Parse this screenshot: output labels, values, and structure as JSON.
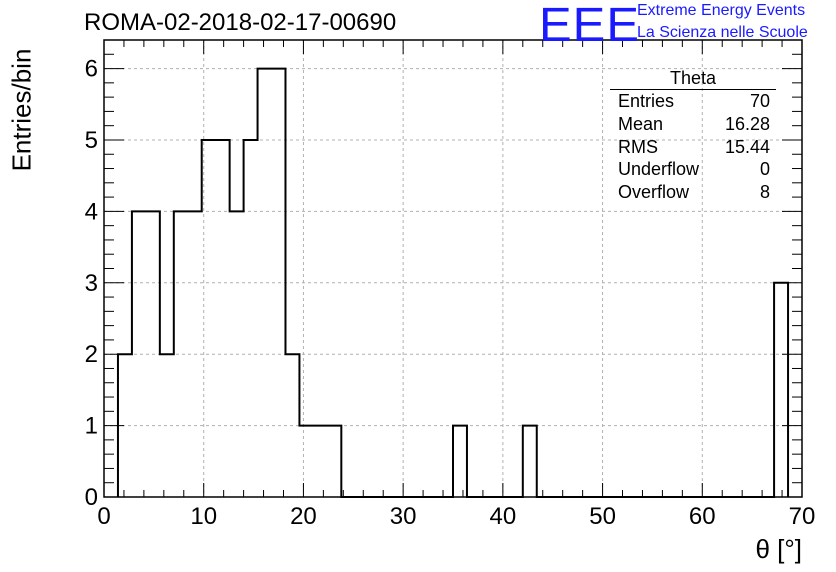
{
  "header": {
    "run_title": "ROMA-02-2018-02-17-00690",
    "logo_text": "EEE",
    "logo_line1": "Extreme Energy Events",
    "logo_line2": "La Scienza nelle Scuole",
    "logo_color": "#1a1aff"
  },
  "stats": {
    "title": "Theta",
    "rows": [
      {
        "label": "Entries",
        "value": "70"
      },
      {
        "label": "Mean",
        "value": "16.28"
      },
      {
        "label": "RMS",
        "value": "15.44"
      },
      {
        "label": "Underflow",
        "value": "0"
      },
      {
        "label": "Overflow",
        "value": "8"
      }
    ]
  },
  "chart_data": {
    "type": "histogram",
    "xlabel": "θ [°]",
    "ylabel": "Entries/bin",
    "xlim": [
      0,
      70
    ],
    "ylim": [
      0,
      6.4
    ],
    "grid": true,
    "line_color": "#000000",
    "xticks": [
      0,
      10,
      20,
      30,
      40,
      50,
      60,
      70
    ],
    "yticks": [
      0,
      1,
      2,
      3,
      4,
      5,
      6
    ],
    "bin_width": 1.4,
    "bin_edges_start": 1.4,
    "values": [
      2,
      4,
      4,
      2,
      4,
      4,
      5,
      5,
      4,
      5,
      6,
      6,
      2,
      1,
      1,
      1,
      0,
      0,
      0,
      0,
      0,
      0,
      0,
      0,
      1,
      0,
      0,
      0,
      0,
      1,
      0,
      0,
      0,
      0,
      0,
      0,
      0,
      0,
      0,
      0,
      0,
      0,
      0,
      0,
      0,
      0,
      0,
      3
    ]
  }
}
